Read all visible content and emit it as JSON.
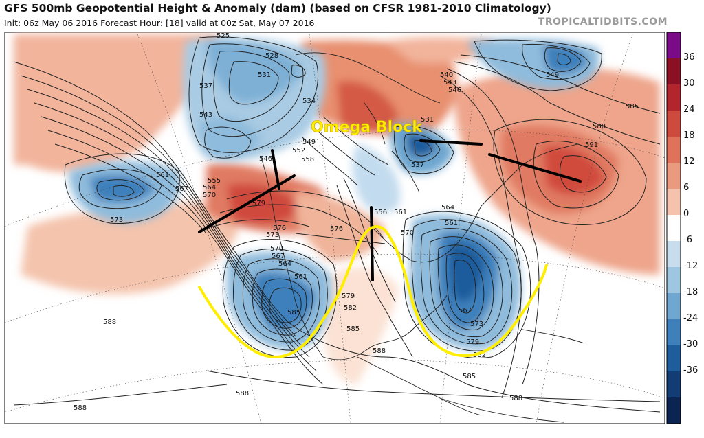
{
  "title": "GFS 500mb Geopotential Height & Anomaly (dam) (based on CFSR 1981-2010 Climatology)",
  "subtitle": "Init: 06z May 06 2016   Forecast Hour: [18]   valid at 00z Sat, May 07 2016",
  "brand": "TROPICALTIDBITS.COM",
  "annotation": "Omega Block",
  "colorbar": {
    "ticks": [
      "36",
      "30",
      "24",
      "18",
      "12",
      "6",
      "0",
      "-6",
      "-12",
      "-18",
      "-24",
      "-30",
      "-36"
    ],
    "colors": [
      "#7a0a88",
      "#8c1024",
      "#b3252c",
      "#cf4a3e",
      "#e0725b",
      "#eb9a80",
      "#f5c3ad",
      "#ffffff",
      "#c7dded",
      "#9fc6e0",
      "#6fa7d0",
      "#3e80bb",
      "#1f5c9c",
      "#133c74",
      "#0c2452"
    ]
  },
  "contours": [
    "525",
    "528",
    "531",
    "534",
    "537",
    "540",
    "543",
    "546",
    "549",
    "552",
    "555",
    "558",
    "561",
    "564",
    "567",
    "570",
    "573",
    "576",
    "579",
    "582",
    "585",
    "588",
    "591"
  ],
  "height_labels": [
    "525",
    "528",
    "531",
    "537",
    "543",
    "534",
    "549",
    "552",
    "558",
    "546",
    "555",
    "564",
    "570",
    "573",
    "561",
    "567",
    "579",
    "588",
    "540",
    "531",
    "537",
    "543",
    "546",
    "549",
    "585",
    "588",
    "591",
    "573",
    "576",
    "570",
    "567",
    "564",
    "561",
    "556",
    "579",
    "582",
    "585",
    "588",
    "585",
    "588",
    "573",
    "567",
    "561",
    "564",
    "561",
    "570",
    "576",
    "579",
    "582",
    "585",
    "588",
    "588"
  ]
}
